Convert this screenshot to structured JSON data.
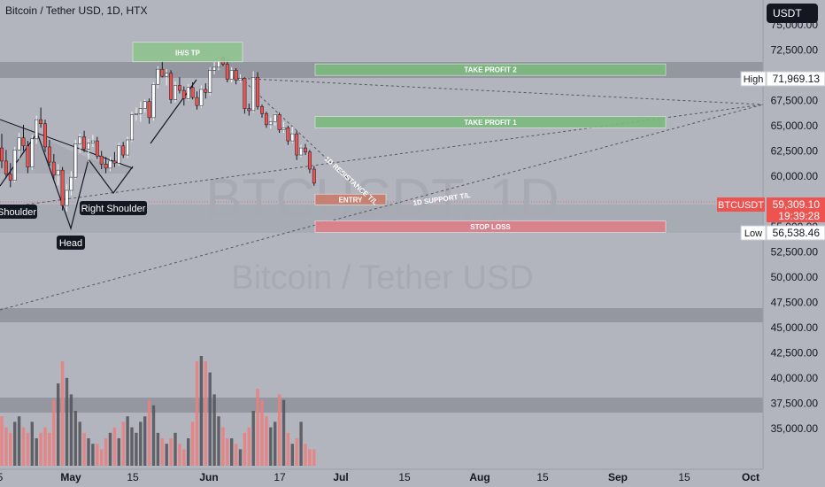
{
  "header": {
    "title": "Bitcoin / Tether USD, 1D, HTX",
    "currency_button": "USDT"
  },
  "watermark": {
    "symbol": "BTCUSDT, 1D",
    "name": "Bitcoin / Tether USD"
  },
  "chart_data": {
    "type": "candlestick",
    "price_axis": {
      "range": [
        33500,
        77000
      ],
      "ticks": [
        "75,000.00",
        "72,500.00",
        "70,000.00",
        "67,500.00",
        "65,000.00",
        "62,500.00",
        "60,000.00",
        "57,500.00",
        "55,000.00",
        "52,500.00",
        "50,000.00",
        "47,500.00",
        "45,000.00",
        "42,500.00",
        "40,000.00",
        "37,500.00",
        "35,000.00"
      ]
    },
    "time_axis": {
      "ticks": [
        "5",
        "May",
        "15",
        "Jun",
        "17",
        "Jul",
        "15",
        "Aug",
        "15",
        "Sep",
        "15",
        "Oct"
      ]
    },
    "markers": {
      "high": {
        "label": "High",
        "value": "71,969.13"
      },
      "low": {
        "label": "Low",
        "value": "56,538.46"
      },
      "last": {
        "label": "BTCUSDT",
        "value": "59,309.10",
        "countdown": "19:39:28"
      }
    },
    "candles": [
      [
        62800,
        64200,
        60800,
        61500
      ],
      [
        61500,
        62600,
        59800,
        60200
      ],
      [
        60200,
        61300,
        58900,
        59600
      ],
      [
        59600,
        62900,
        59400,
        62600
      ],
      [
        62600,
        64300,
        61700,
        63800
      ],
      [
        63800,
        65100,
        62500,
        63000
      ],
      [
        63000,
        63500,
        60300,
        60900
      ],
      [
        60900,
        64100,
        60600,
        63700
      ],
      [
        63700,
        66000,
        63200,
        65600
      ],
      [
        65600,
        66800,
        64800,
        65200
      ],
      [
        65200,
        65600,
        62400,
        62900
      ],
      [
        62900,
        63600,
        61000,
        61400
      ],
      [
        61400,
        62200,
        59600,
        60100
      ],
      [
        60100,
        61200,
        59100,
        60600
      ],
      [
        60600,
        60900,
        56600,
        57100
      ],
      [
        57100,
        59200,
        56540,
        58600
      ],
      [
        58600,
        60500,
        58100,
        59900
      ],
      [
        59900,
        63600,
        59700,
        63200
      ],
      [
        63200,
        64200,
        62300,
        63900
      ],
      [
        63900,
        64500,
        62400,
        62700
      ],
      [
        62700,
        63700,
        61400,
        63300
      ],
      [
        63300,
        64100,
        62900,
        63500
      ],
      [
        63500,
        63900,
        61700,
        62000
      ],
      [
        62000,
        62500,
        60700,
        61200
      ],
      [
        61200,
        61900,
        60300,
        60800
      ],
      [
        60800,
        61900,
        60500,
        61500
      ],
      [
        61500,
        62400,
        60900,
        61300
      ],
      [
        61300,
        63300,
        61000,
        63000
      ],
      [
        63000,
        63400,
        61800,
        62100
      ],
      [
        62100,
        63900,
        61800,
        63600
      ],
      [
        63600,
        66400,
        63400,
        66100
      ],
      [
        66100,
        66800,
        65500,
        66200
      ],
      [
        66200,
        67400,
        65400,
        66700
      ],
      [
        66700,
        67600,
        66300,
        67400
      ],
      [
        67400,
        67700,
        65200,
        65800
      ],
      [
        65800,
        69300,
        65500,
        69100
      ],
      [
        69100,
        70900,
        68700,
        70600
      ],
      [
        70600,
        71400,
        69800,
        69900
      ],
      [
        69900,
        70600,
        69000,
        70200
      ],
      [
        70200,
        70500,
        67200,
        67600
      ],
      [
        67600,
        69400,
        67300,
        69000
      ],
      [
        69000,
        69800,
        68200,
        68500
      ],
      [
        68500,
        68900,
        67000,
        67700
      ],
      [
        67700,
        69100,
        67500,
        68800
      ],
      [
        68800,
        69300,
        67600,
        67800
      ],
      [
        67800,
        68400,
        66600,
        67000
      ],
      [
        67000,
        69000,
        66800,
        68600
      ],
      [
        68600,
        69200,
        67700,
        68300
      ],
      [
        68300,
        70800,
        68000,
        70500
      ],
      [
        70500,
        71300,
        70100,
        70800
      ],
      [
        70800,
        71969,
        70500,
        71700
      ],
      [
        71700,
        71900,
        70900,
        71100
      ],
      [
        71100,
        71500,
        69300,
        69600
      ],
      [
        69600,
        70800,
        69300,
        70500
      ],
      [
        70500,
        70700,
        69100,
        69500
      ],
      [
        69500,
        70100,
        69300,
        69700
      ],
      [
        69700,
        69800,
        66200,
        66700
      ],
      [
        66700,
        67200,
        66000,
        66500
      ],
      [
        66500,
        70400,
        66300,
        69800
      ],
      [
        69800,
        70300,
        66600,
        66900
      ],
      [
        66900,
        67100,
        65800,
        66200
      ],
      [
        66200,
        66400,
        64800,
        65100
      ],
      [
        65100,
        65800,
        64700,
        65400
      ],
      [
        65400,
        66200,
        65000,
        66100
      ],
      [
        66100,
        66300,
        64300,
        64600
      ],
      [
        64600,
        65400,
        64300,
        64800
      ],
      [
        64800,
        65000,
        63100,
        63500
      ],
      [
        63500,
        64900,
        63300,
        64200
      ],
      [
        64200,
        64500,
        61600,
        62100
      ],
      [
        62100,
        63100,
        61900,
        62800
      ],
      [
        62800,
        63200,
        62100,
        62400
      ],
      [
        62400,
        62600,
        60300,
        60700
      ],
      [
        60700,
        61000,
        59050,
        59309
      ]
    ],
    "volume": [
      9,
      7,
      6,
      8,
      9,
      7,
      6,
      8,
      5,
      6,
      7,
      6,
      12,
      15,
      19,
      16,
      13,
      10,
      8,
      6,
      5,
      4,
      4,
      3,
      5,
      6,
      7,
      5,
      8,
      9,
      7,
      6,
      8,
      9,
      12,
      11,
      6,
      5,
      4,
      5,
      6,
      4,
      3,
      5,
      8,
      19,
      20,
      19,
      17,
      13,
      9,
      7,
      5,
      5,
      4,
      3,
      6,
      7,
      10,
      14,
      12,
      9,
      7,
      8,
      13,
      12,
      6,
      4,
      5,
      8,
      4,
      3,
      3
    ],
    "annotations": {
      "zones": [
        {
          "label": "TAKE PROFIT 2",
          "price": 70600,
          "color": "#7cba7f"
        },
        {
          "label": "TAKE PROFIT 1",
          "price": 65400,
          "color": "#7cba7f"
        },
        {
          "label": "IH/S TP",
          "price": 72300,
          "color": "#8fc38f"
        },
        {
          "label": "ENTRY",
          "price": 57700,
          "color": "#c97c6a"
        },
        {
          "label": "STOP LOSS",
          "price": 55050,
          "color": "#de7f87"
        }
      ],
      "trendlines": [
        "1D RESISTANCE T/L",
        "1D SUPPORT T/L"
      ],
      "pattern_labels": [
        "Shoulder",
        "Head",
        "Right Shoulder"
      ]
    },
    "colors": {
      "up": "#ffffff",
      "down": "#ef5350",
      "grid_band": "#8a8d96",
      "background": "#b2b5be"
    }
  }
}
